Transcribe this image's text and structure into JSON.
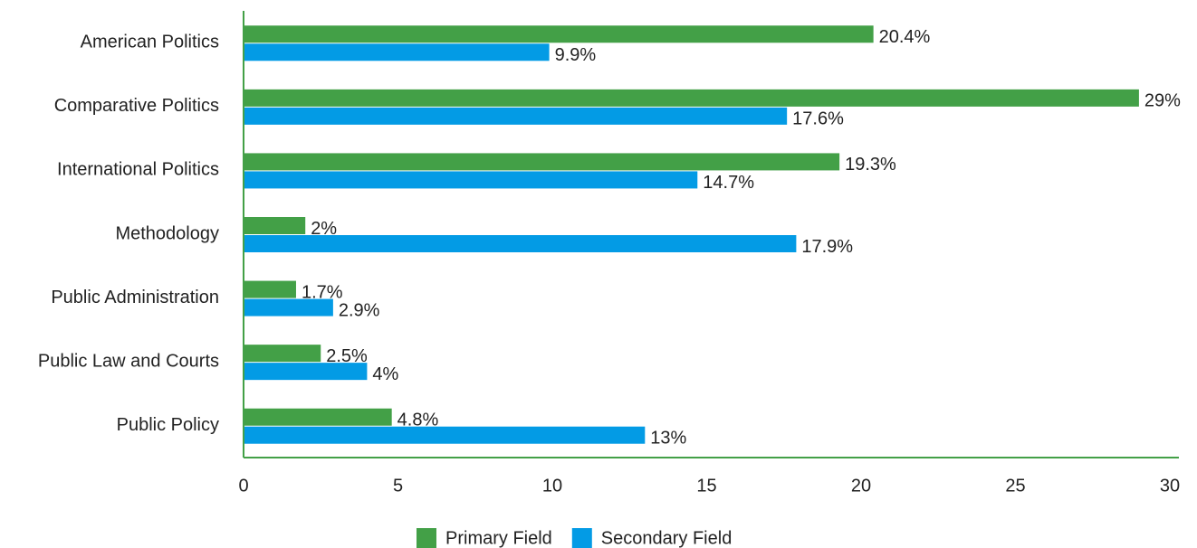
{
  "chart_data": {
    "type": "hbar",
    "categories": [
      "American Politics",
      "Comparative Politics",
      "International Politics",
      "Methodology",
      "Public Administration",
      "Public Law and Courts",
      "Public Policy"
    ],
    "series": [
      {
        "name": "Primary Field",
        "color": "#43a047",
        "values": [
          20.4,
          29,
          19.3,
          2,
          1.7,
          2.5,
          4.8
        ],
        "value_labels": [
          "20.4%",
          "29%",
          "19.3%",
          "2%",
          "1.7%",
          "2.5%",
          "4.8%"
        ]
      },
      {
        "name": "Secondary Field",
        "color": "#039be5",
        "values": [
          9.9,
          17.6,
          14.7,
          17.9,
          2.9,
          4,
          13
        ],
        "value_labels": [
          "9.9%",
          "17.6%",
          "14.7%",
          "17.9%",
          "2.9%",
          "4%",
          "13%"
        ]
      }
    ],
    "xlim": [
      0,
      30
    ],
    "xticks": [
      0,
      5,
      10,
      15,
      20,
      25,
      30
    ],
    "axis_color": "#43a047",
    "legend": "bottom"
  }
}
